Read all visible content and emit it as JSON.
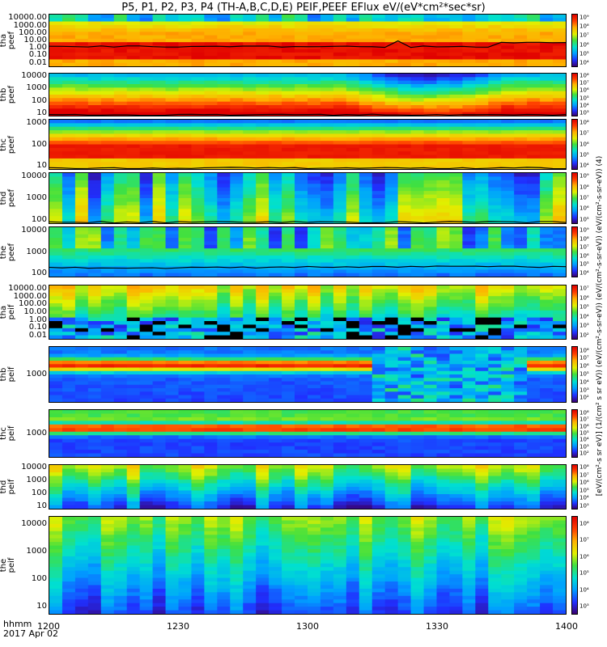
{
  "title": "P5, P1, P2, P3, P4 (TH-A,B,C,D,E) PEIF,PEEF EFlux eV/(eV*cm²*sec*sr)",
  "colorbar_label": "[eV/(cm²-s sr eV)] (1/(cm² s sr eV)) (eV/(cm²-s-sr-eV)) (eV/(cm²-s-sr-eV)) (eV/(cm²-s-sr-eV)) (4)",
  "x_axis": {
    "label_line1": "hhmm",
    "label_line2": "2017 Apr 02",
    "ticks": [
      "1200",
      "1230",
      "1300",
      "1330",
      "1400"
    ]
  },
  "colors": {
    "colormap": [
      "#3a0070",
      "#2030ff",
      "#00a0ff",
      "#00e0d0",
      "#40e040",
      "#e0f000",
      "#ffb000",
      "#ff4000",
      "#e00000"
    ],
    "curve": "#000000"
  },
  "panels": [
    {
      "name": "tha-peef",
      "label": "tha\npeef",
      "yticks": [
        "10000.00",
        "1000.00",
        "100.00",
        "10.00",
        "1.00",
        "0.10",
        "0.01"
      ],
      "cbar_ticks": [
        "10⁹",
        "10⁸",
        "10⁷",
        "10⁶",
        "10⁵",
        "10⁴"
      ]
    },
    {
      "name": "thb-peef",
      "label": "thb\npeef",
      "yticks": [
        "10000",
        "1000",
        "100",
        "10"
      ],
      "cbar_ticks": [
        "10⁸",
        "10⁷",
        "10⁶",
        "10⁵",
        "10⁴",
        "10³"
      ]
    },
    {
      "name": "thc-peef",
      "label": "thc\npeef",
      "yticks": [
        "1000",
        "100",
        "10"
      ],
      "cbar_ticks": [
        "10⁸",
        "10⁷",
        "10⁶",
        "10⁵",
        "10⁴"
      ]
    },
    {
      "name": "thd-peef",
      "label": "thd\npeef",
      "yticks": [
        "10000",
        "1000",
        "100"
      ],
      "cbar_ticks": [
        "10⁹",
        "10⁸",
        "10⁷",
        "10⁶",
        "10⁵"
      ]
    },
    {
      "name": "the-peef",
      "label": "the\npeef",
      "yticks": [
        "10000",
        "1000",
        "100"
      ],
      "cbar_ticks": [
        "10⁹",
        "10⁸",
        "10⁷",
        "10⁶",
        "10⁵",
        "10⁴"
      ]
    },
    {
      "name": "tha-peif",
      "label": "tha\npeif",
      "yticks": [
        "10000.00",
        "1000.00",
        "100.00",
        "10.00",
        "1.00",
        "0.10",
        "0.01"
      ],
      "cbar_ticks": [
        "10⁷",
        "10⁶",
        "10⁵",
        "10⁴",
        "10³",
        "10²"
      ]
    },
    {
      "name": "thb-peif",
      "label": "thb\npeif",
      "yticks": [
        "1000"
      ],
      "cbar_ticks": [
        "10⁸",
        "10⁷",
        "10⁶",
        "10⁵",
        "10⁴",
        "10³",
        "10²"
      ]
    },
    {
      "name": "thc-peif",
      "label": "thc\npeif",
      "yticks": [
        "1000"
      ],
      "cbar_ticks": [
        "10⁸",
        "10⁷",
        "10⁶",
        "10⁵",
        "10⁴",
        "10³",
        "10²"
      ]
    },
    {
      "name": "thd-peif",
      "label": "thd\npeif",
      "yticks": [
        "10000",
        "1000",
        "100",
        "10"
      ],
      "cbar_ticks": [
        "10⁸",
        "10⁷",
        "10⁶",
        "10⁵",
        "10⁴",
        "10³"
      ]
    },
    {
      "name": "the-peif",
      "label": "the\npeif",
      "yticks": [
        "10000",
        "1000",
        "100",
        "10"
      ],
      "cbar_ticks": [
        "10⁸",
        "10⁷",
        "10⁶",
        "10⁵",
        "10⁴",
        "10³"
      ]
    }
  ],
  "chart_data": {
    "type": "heatmap",
    "title": "P5, P1, P2, P3, P4 (TH-A,B,C,D,E) PEIF,PEEF EFlux eV/(eV*cm²*sec*sr)",
    "xlabel": "hhmm",
    "x_range": [
      "1200",
      "1400"
    ],
    "x_ticks": [
      "1200",
      "1230",
      "1300",
      "1330",
      "1400"
    ],
    "series": [
      "tha peef",
      "thb peef",
      "thc peef",
      "thd peef",
      "the peef",
      "tha peif",
      "thb peif",
      "thc peif",
      "thd peif",
      "the peif"
    ],
    "y_scale": "log",
    "grid": false
  }
}
